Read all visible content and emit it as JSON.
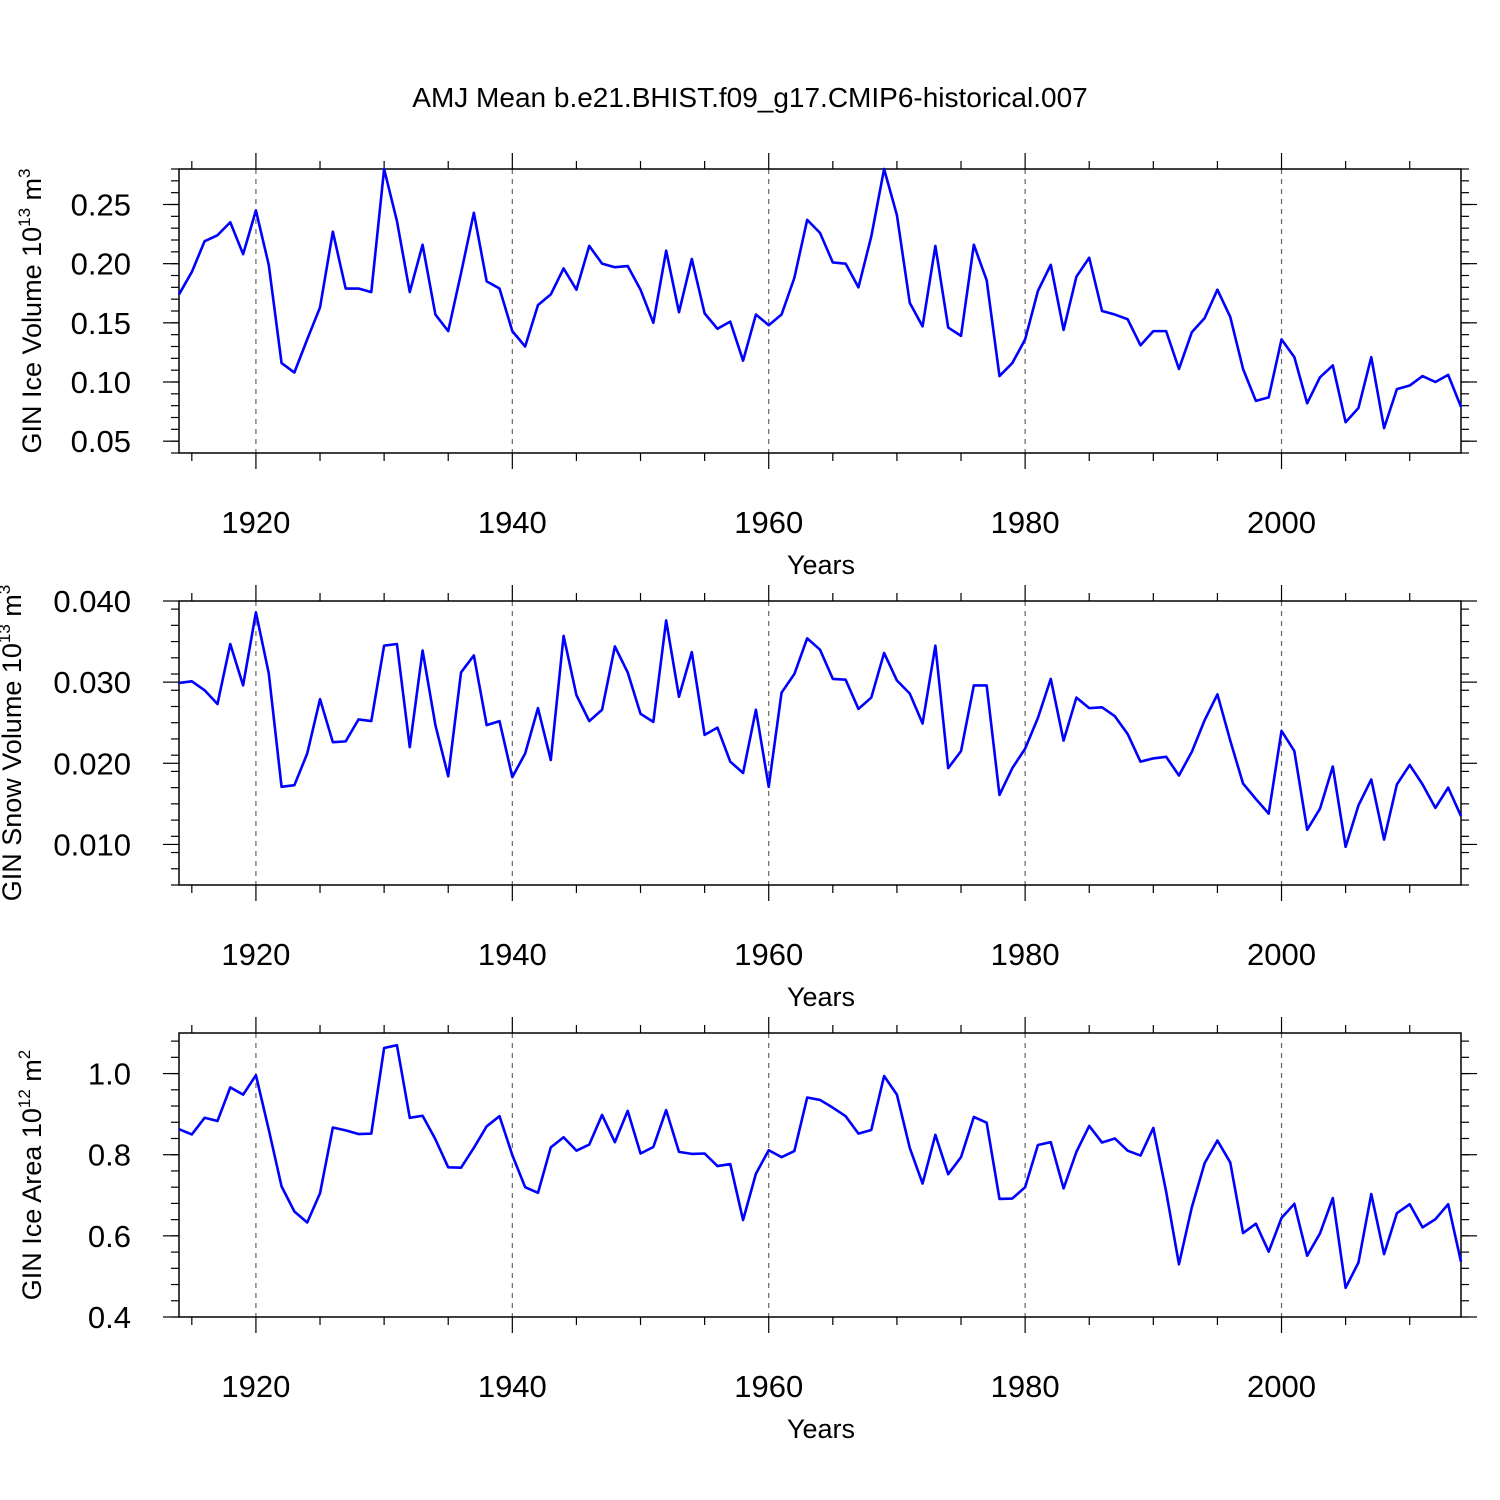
{
  "title": "AMJ Mean b.e21.BHIST.f09_g17.CMIP6-historical.007",
  "colors": {
    "line": "#0000ff",
    "frame": "#000000",
    "grid": "#666666"
  },
  "chart_data": [
    {
      "type": "line",
      "id": "ice_volume",
      "xlabel": "Years",
      "ylabel": {
        "prefix": "GIN Ice Volume 10",
        "exponent": "13",
        "unit": " m",
        "unit_exponent": "3"
      },
      "xlim": [
        1914,
        2014
      ],
      "ylim": [
        0.04,
        0.28
      ],
      "xticks": [
        1920,
        1940,
        1960,
        1980,
        2000
      ],
      "xtick_labels": [
        "1920",
        "1940",
        "1960",
        "1980",
        "2000"
      ],
      "yticks": [
        0.05,
        0.1,
        0.15,
        0.2,
        0.25
      ],
      "ytick_labels": [
        "0.05",
        "0.10",
        "0.15",
        "0.20",
        "0.25"
      ],
      "grid": "vertical dashed at major x ticks",
      "series": [
        {
          "name": "GIN Ice Volume",
          "x_start": 1914,
          "values": [
            0.174,
            0.193,
            0.219,
            0.224,
            0.235,
            0.208,
            0.245,
            0.199,
            0.116,
            0.108,
            0.136,
            0.163,
            0.227,
            0.179,
            0.179,
            0.176,
            0.28,
            0.236,
            0.176,
            0.216,
            0.157,
            0.143,
            0.192,
            0.243,
            0.185,
            0.179,
            0.143,
            0.13,
            0.165,
            0.174,
            0.196,
            0.178,
            0.215,
            0.2,
            0.197,
            0.198,
            0.178,
            0.15,
            0.211,
            0.159,
            0.204,
            0.158,
            0.145,
            0.151,
            0.118,
            0.157,
            0.148,
            0.157,
            0.188,
            0.237,
            0.226,
            0.201,
            0.2,
            0.18,
            0.223,
            0.28,
            0.241,
            0.167,
            0.147,
            0.215,
            0.146,
            0.139,
            0.216,
            0.186,
            0.105,
            0.116,
            0.136,
            0.177,
            0.199,
            0.144,
            0.189,
            0.205,
            0.16,
            0.157,
            0.153,
            0.131,
            0.143,
            0.143,
            0.111,
            0.142,
            0.154,
            0.178,
            0.155,
            0.111,
            0.084,
            0.087,
            0.136,
            0.121,
            0.082,
            0.104,
            0.114,
            0.066,
            0.078,
            0.121,
            0.061,
            0.094,
            0.097,
            0.105,
            0.1,
            0.106,
            0.079
          ]
        }
      ]
    },
    {
      "type": "line",
      "id": "snow_volume",
      "xlabel": "Years",
      "ylabel": {
        "prefix": "GIN Snow Volume 10",
        "exponent": "13",
        "unit": " m",
        "unit_exponent": "3"
      },
      "xlim": [
        1914,
        2014
      ],
      "ylim": [
        0.005,
        0.04
      ],
      "xticks": [
        1920,
        1940,
        1960,
        1980,
        2000
      ],
      "xtick_labels": [
        "1920",
        "1940",
        "1960",
        "1980",
        "2000"
      ],
      "yticks": [
        0.01,
        0.02,
        0.03,
        0.04
      ],
      "ytick_labels": [
        "0.010",
        "0.020",
        "0.030",
        "0.040"
      ],
      "grid": "vertical dashed at major x ticks",
      "series": [
        {
          "name": "GIN Snow Volume",
          "x_start": 1914,
          "values": [
            0.0299,
            0.0301,
            0.029,
            0.0273,
            0.0347,
            0.0296,
            0.0386,
            0.0311,
            0.0171,
            0.0173,
            0.0212,
            0.0279,
            0.0226,
            0.0227,
            0.0254,
            0.0252,
            0.0345,
            0.0347,
            0.022,
            0.0339,
            0.0247,
            0.0184,
            0.0312,
            0.0333,
            0.0247,
            0.0252,
            0.0183,
            0.0212,
            0.0268,
            0.0204,
            0.0357,
            0.0284,
            0.0252,
            0.0266,
            0.0344,
            0.0312,
            0.0261,
            0.0251,
            0.0376,
            0.0282,
            0.0337,
            0.0235,
            0.0244,
            0.0202,
            0.0188,
            0.0266,
            0.0171,
            0.0287,
            0.031,
            0.0354,
            0.034,
            0.0304,
            0.0303,
            0.0267,
            0.0281,
            0.0336,
            0.0302,
            0.0286,
            0.0249,
            0.0345,
            0.0194,
            0.0215,
            0.0296,
            0.0296,
            0.0161,
            0.0194,
            0.0218,
            0.0256,
            0.0304,
            0.0228,
            0.0281,
            0.0268,
            0.0269,
            0.0258,
            0.0236,
            0.0202,
            0.0206,
            0.0208,
            0.0185,
            0.0214,
            0.0253,
            0.0285,
            0.0228,
            0.0175,
            0.0156,
            0.0138,
            0.024,
            0.0215,
            0.0118,
            0.0144,
            0.0196,
            0.0097,
            0.0148,
            0.018,
            0.0106,
            0.0174,
            0.0198,
            0.0174,
            0.0145,
            0.017,
            0.0135
          ]
        }
      ]
    },
    {
      "type": "line",
      "id": "ice_area",
      "xlabel": "Years",
      "ylabel": {
        "prefix": "GIN Ice Area 10",
        "exponent": "12",
        "unit": " m",
        "unit_exponent": "2"
      },
      "xlim": [
        1914,
        2014
      ],
      "ylim": [
        0.4,
        1.1
      ],
      "xticks": [
        1920,
        1940,
        1960,
        1980,
        2000
      ],
      "xtick_labels": [
        "1920",
        "1940",
        "1960",
        "1980",
        "2000"
      ],
      "yticks": [
        0.4,
        0.6,
        0.8,
        1.0
      ],
      "ytick_labels": [
        "0.4",
        "0.6",
        "0.8",
        "1.0"
      ],
      "grid": "vertical dashed at major x ticks",
      "series": [
        {
          "name": "GIN Ice Area",
          "x_start": 1914,
          "values": [
            0.863,
            0.85,
            0.891,
            0.883,
            0.966,
            0.948,
            0.996,
            0.862,
            0.722,
            0.66,
            0.633,
            0.705,
            0.867,
            0.86,
            0.851,
            0.852,
            1.063,
            1.07,
            0.891,
            0.896,
            0.838,
            0.769,
            0.768,
            0.817,
            0.87,
            0.895,
            0.799,
            0.72,
            0.706,
            0.818,
            0.843,
            0.81,
            0.825,
            0.898,
            0.831,
            0.908,
            0.803,
            0.819,
            0.91,
            0.807,
            0.802,
            0.803,
            0.772,
            0.777,
            0.639,
            0.753,
            0.811,
            0.794,
            0.809,
            0.941,
            0.935,
            0.916,
            0.895,
            0.852,
            0.861,
            0.994,
            0.948,
            0.817,
            0.729,
            0.849,
            0.752,
            0.794,
            0.893,
            0.879,
            0.691,
            0.692,
            0.72,
            0.824,
            0.831,
            0.717,
            0.807,
            0.871,
            0.83,
            0.84,
            0.81,
            0.798,
            0.866,
            0.709,
            0.53,
            0.67,
            0.779,
            0.835,
            0.781,
            0.607,
            0.63,
            0.561,
            0.644,
            0.679,
            0.551,
            0.606,
            0.693,
            0.472,
            0.534,
            0.703,
            0.555,
            0.656,
            0.678,
            0.621,
            0.641,
            0.678,
            0.536
          ]
        }
      ]
    }
  ]
}
